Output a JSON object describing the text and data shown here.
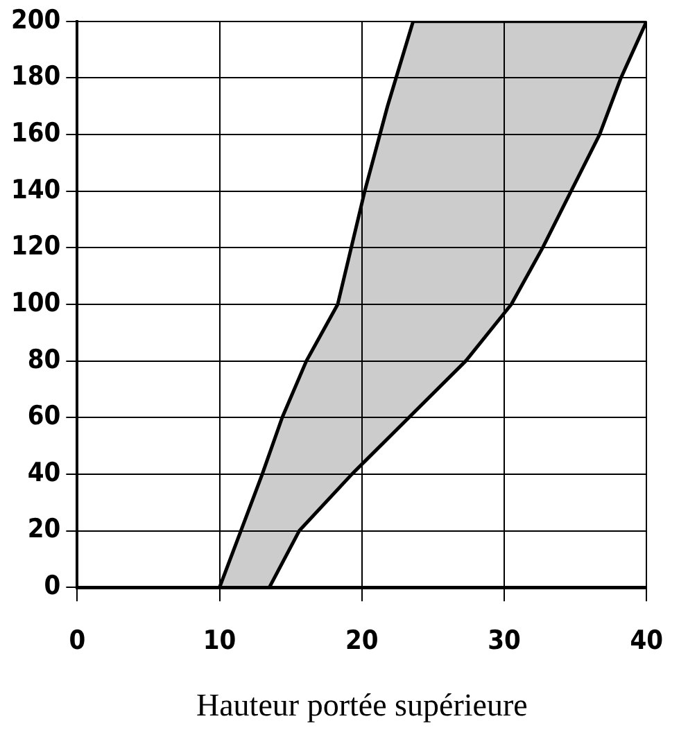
{
  "chart_data": {
    "type": "area",
    "xlabel": "Hauteur portée supérieure",
    "series": [
      {
        "color": "#000000",
        "x": [
          10,
          12.4,
          13,
          14.4,
          16.1,
          18.3,
          20.2,
          21.8,
          23.6,
          40,
          38.2,
          36.7,
          34.7,
          32.7,
          30.5,
          27.3,
          23.3,
          19.3,
          15.6,
          13.5
        ],
        "values": [
          0,
          32,
          40,
          60,
          80,
          100,
          140,
          170,
          200,
          200,
          180,
          160,
          140,
          120,
          100,
          80,
          60,
          40,
          20,
          0
        ]
      }
    ],
    "xlim": [
      0,
      40
    ],
    "xticks": [
      0,
      10,
      20,
      30,
      40
    ],
    "ylim": [
      0,
      200
    ],
    "yticks": [
      0,
      20,
      40,
      60,
      80,
      100,
      120,
      140,
      160,
      180,
      200
    ],
    "grid": true,
    "marker": "none",
    "line_style": "solid"
  }
}
